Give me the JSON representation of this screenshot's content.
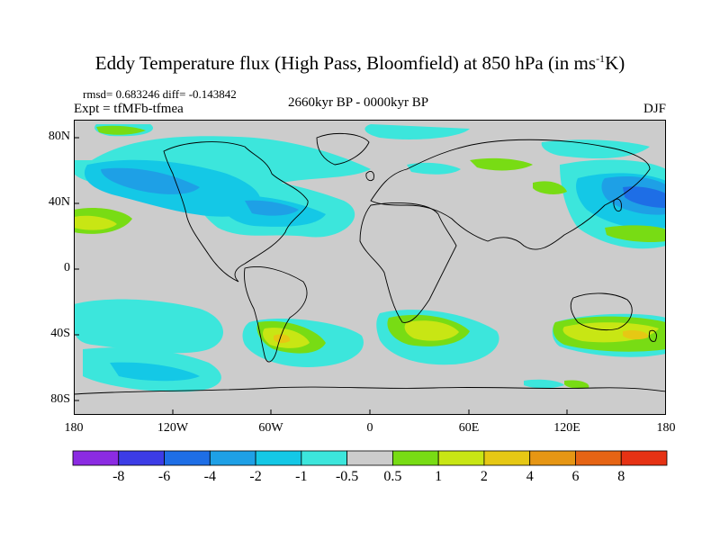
{
  "header": {
    "title_main": "Eddy Temperature flux (High Pass, Bloomfield) at 850 hPa (in ms",
    "title_sup": "-1",
    "title_end": "K)",
    "stats": "rmsd= 0.683246 diff= -0.143842",
    "experiment": "Expt = tfMFb-tfmea",
    "period": "2660kyr BP - 0000kyr BP",
    "season": "DJF"
  },
  "map": {
    "lat_labels": [
      "80N",
      "40N",
      "0",
      "40S",
      "80S"
    ],
    "lon_labels": [
      "180",
      "120W",
      "60W",
      "0",
      "60E",
      "120E",
      "180"
    ],
    "background_color": "#cccccc"
  },
  "colorbar": {
    "labels": [
      "-8",
      "-6",
      "-4",
      "-2",
      "-1",
      "-0.5",
      "0.5",
      "1",
      "2",
      "4",
      "6",
      "8"
    ],
    "colors": [
      "#8b2be2",
      "#3c3ce6",
      "#1e6ee6",
      "#1ea0e6",
      "#14c8e6",
      "#3ce6dc",
      "#cccccc",
      "#78dc14",
      "#c8e614",
      "#e6c814",
      "#e69614",
      "#e66414",
      "#e63214"
    ]
  }
}
